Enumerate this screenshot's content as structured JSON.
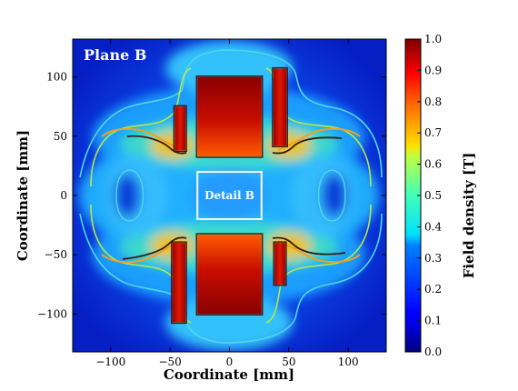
{
  "chart_data": {
    "type": "heatmap",
    "panel_label": "Plane B",
    "detail_label": "Detail B",
    "xlabel": "Coordinate [mm]",
    "ylabel": "Coordinate [mm]",
    "colorbar_label": "Field density  [T]",
    "xlim": [
      -132,
      132
    ],
    "ylim": [
      -132,
      132
    ],
    "xticks": [
      {
        "value": -100,
        "label": "−100"
      },
      {
        "value": -50,
        "label": "−50"
      },
      {
        "value": 0,
        "label": "0"
      },
      {
        "value": 50,
        "label": "50"
      },
      {
        "value": 100,
        "label": "100"
      }
    ],
    "yticks": [
      {
        "value": 100,
        "label": "100"
      },
      {
        "value": 50,
        "label": "50"
      },
      {
        "value": 0,
        "label": "0"
      },
      {
        "value": -50,
        "label": "−50"
      },
      {
        "value": -100,
        "label": "−100"
      }
    ],
    "colorbar": {
      "range": [
        0.0,
        1.0
      ],
      "ticks": [
        "0.0",
        "0.1",
        "0.2",
        "0.3",
        "0.4",
        "0.5",
        "0.6",
        "0.7",
        "0.8",
        "0.9",
        "1.0"
      ],
      "colormap": "jet"
    },
    "detail_box": {
      "x": [
        -27,
        27
      ],
      "y": [
        -20,
        20
      ]
    },
    "high_field_regions": [
      {
        "name": "upper-center-block",
        "x": [
          -27,
          27
        ],
        "y": [
          33,
          100
        ],
        "value": 0.95
      },
      {
        "name": "lower-center-block",
        "x": [
          -27,
          27
        ],
        "y": [
          -100,
          -33
        ],
        "value": 0.95
      },
      {
        "name": "upper-left-bar",
        "x": [
          -46,
          -37
        ],
        "y": [
          38,
          75
        ],
        "value": 0.9
      },
      {
        "name": "upper-right-bar",
        "x": [
          37,
          48
        ],
        "y": [
          42,
          107
        ],
        "value": 0.9
      },
      {
        "name": "lower-left-bar",
        "x": [
          -48,
          -37
        ],
        "y": [
          -107,
          -40
        ],
        "value": 0.9
      },
      {
        "name": "lower-right-bar",
        "x": [
          38,
          47
        ],
        "y": [
          -75,
          -40
        ],
        "value": 0.9
      }
    ],
    "contour_levels": [
      0.3,
      0.5,
      0.7,
      0.9
    ],
    "contour_colors": [
      "#4dd8e8",
      "#b4e84a",
      "#f0a020",
      "#3a1a10"
    ]
  }
}
